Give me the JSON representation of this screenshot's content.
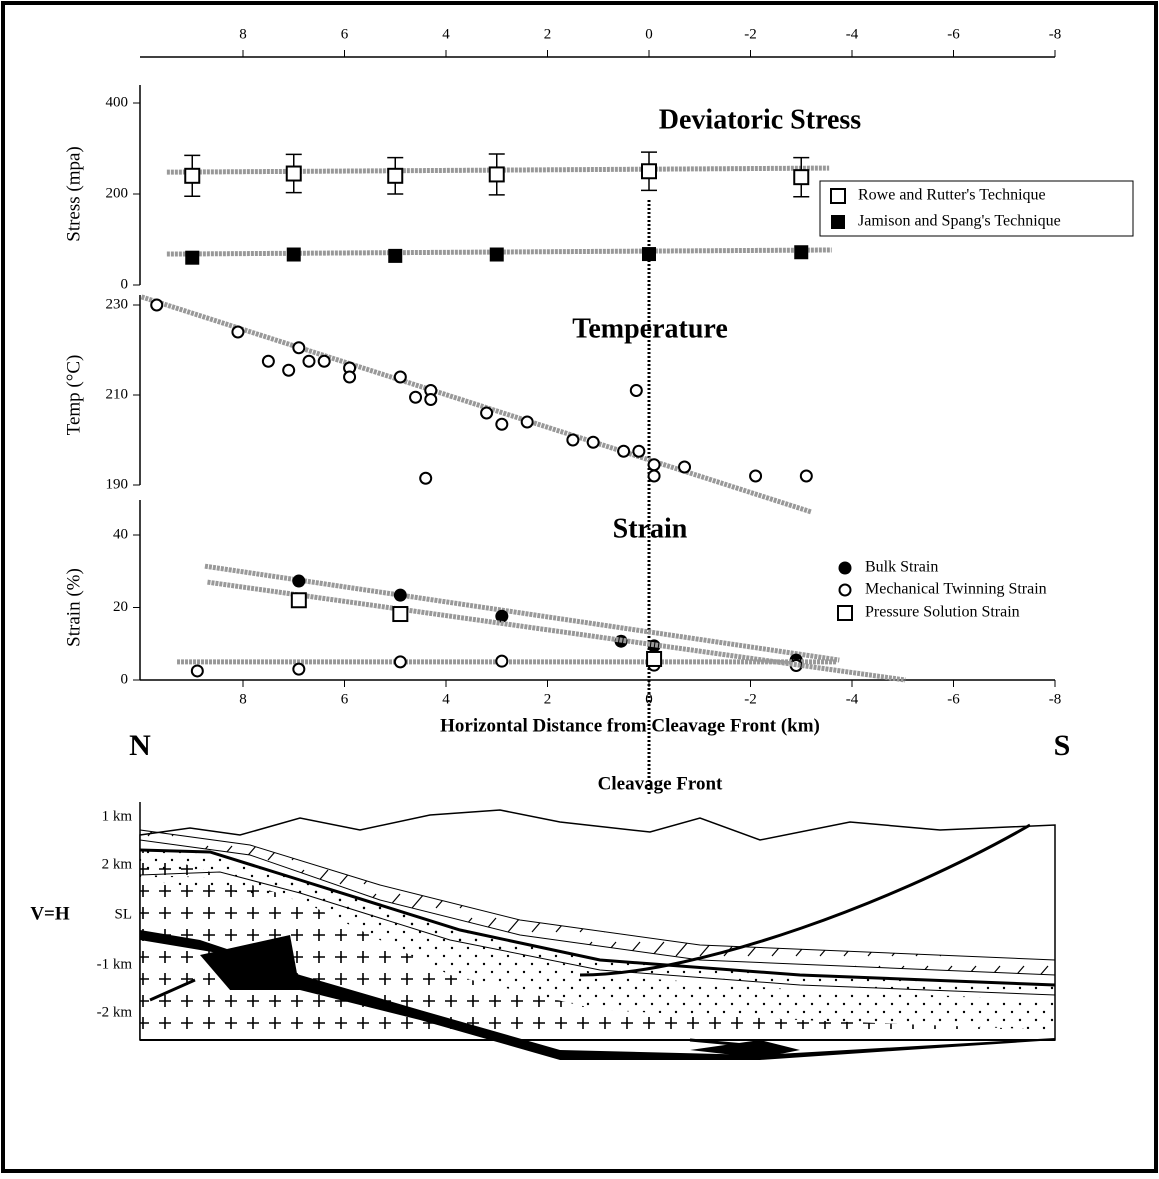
{
  "chart_data": [
    {
      "type": "scatter",
      "title": "Deviatoric Stress",
      "ylabel": "Stress (mpa)",
      "xlim": [
        10,
        -8
      ],
      "ylim": [
        0,
        400
      ],
      "yticks": [
        0,
        200,
        400
      ],
      "xticks": [
        8,
        6,
        4,
        2,
        0,
        -2,
        -4,
        -6,
        -8
      ],
      "series": [
        {
          "name": "Rowe and Rutter's Technique",
          "marker": "open-square",
          "color": "#000",
          "x": [
            9,
            7,
            5,
            3,
            0,
            -3
          ],
          "values": [
            240,
            245,
            240,
            243,
            250,
            237
          ],
          "errors": [
            45,
            42,
            40,
            45,
            42,
            43
          ],
          "trend": {
            "x": [
              9.5,
              -3.55
            ],
            "values": [
              248,
              257
            ]
          }
        },
        {
          "name": "Jamison and Spang's Technique",
          "marker": "filled-square",
          "color": "#000",
          "x": [
            9,
            7,
            5,
            3,
            0,
            -3
          ],
          "values": [
            60,
            67,
            64,
            67,
            68,
            72
          ],
          "trend": {
            "x": [
              9.5,
              -3.6
            ],
            "values": [
              68,
              77
            ]
          }
        }
      ]
    },
    {
      "type": "scatter",
      "title": "Temperature",
      "ylabel": "Temp (°C)",
      "xlim": [
        10,
        -8
      ],
      "ylim": [
        190,
        230
      ],
      "yticks": [
        190,
        210,
        230
      ],
      "series": [
        {
          "marker": "open-circle",
          "color": "#000",
          "x": [
            9.7,
            8.1,
            7.5,
            7.1,
            6.9,
            6.7,
            6.4,
            5.9,
            5.9,
            4.9,
            4.6,
            4.3,
            4.3,
            4.4,
            3.2,
            2.9,
            2.4,
            1.5,
            1.1,
            0.5,
            0.2,
            0.25,
            -0.1,
            -0.1,
            -0.7,
            -2.1,
            -3.1
          ],
          "values": [
            230,
            224,
            217.5,
            215.5,
            220.5,
            217.5,
            217.5,
            216,
            214,
            214,
            209.5,
            211,
            209,
            191.5,
            206,
            203.5,
            204,
            200,
            199.5,
            197.5,
            197.5,
            211,
            194.5,
            192,
            194,
            192,
            192
          ],
          "trend": {
            "x": [
              10,
              -3.2
            ],
            "values": [
              231.8,
              184
            ]
          }
        }
      ]
    },
    {
      "type": "scatter",
      "title": "Strain",
      "ylabel": "Strain (%)",
      "xlabel": "Horizontal Distance from Cleavage Front (km)",
      "xlim": [
        10,
        -8
      ],
      "ylim": [
        0,
        40
      ],
      "yticks": [
        0,
        20,
        40
      ],
      "xticks": [
        8,
        6,
        4,
        2,
        0,
        -2,
        -4,
        -6,
        -8
      ],
      "series": [
        {
          "name": "Bulk Strain",
          "marker": "filled-circle",
          "color": "#000",
          "x": [
            6.9,
            4.9,
            2.9,
            0.55,
            -0.1,
            -2.9
          ],
          "values": [
            27.3,
            23.4,
            17.6,
            10.7,
            9.4,
            5.5
          ],
          "trend": {
            "x": [
              8.75,
              -3.75
            ],
            "values": [
              31.4,
              5.5
            ]
          }
        },
        {
          "name": "Mechanical Twinning Strain",
          "marker": "open-circle",
          "color": "#000",
          "x": [
            8.9,
            6.9,
            4.9,
            2.9,
            -0.1,
            -2.9
          ],
          "values": [
            2.5,
            3,
            5,
            5.2,
            4.1,
            4
          ],
          "trend": {
            "x": [
              9.3,
              -3.7
            ],
            "values": [
              5,
              5
            ]
          }
        },
        {
          "name": "Pressure Solution Strain",
          "marker": "open-square",
          "color": "#000",
          "x": [
            6.9,
            4.9,
            -0.1
          ],
          "values": [
            22,
            18.2,
            5.8
          ],
          "trend": {
            "x": [
              8.7,
              -5.05
            ],
            "values": [
              27,
              0
            ]
          }
        }
      ]
    }
  ],
  "figure": {
    "north": "N",
    "south": "S",
    "cleavage_front": "Cleavage Front",
    "scale_note": "V=H",
    "depth_labels": [
      "1 km",
      "2 km",
      "SL",
      "-1 km",
      "-2 km"
    ]
  }
}
